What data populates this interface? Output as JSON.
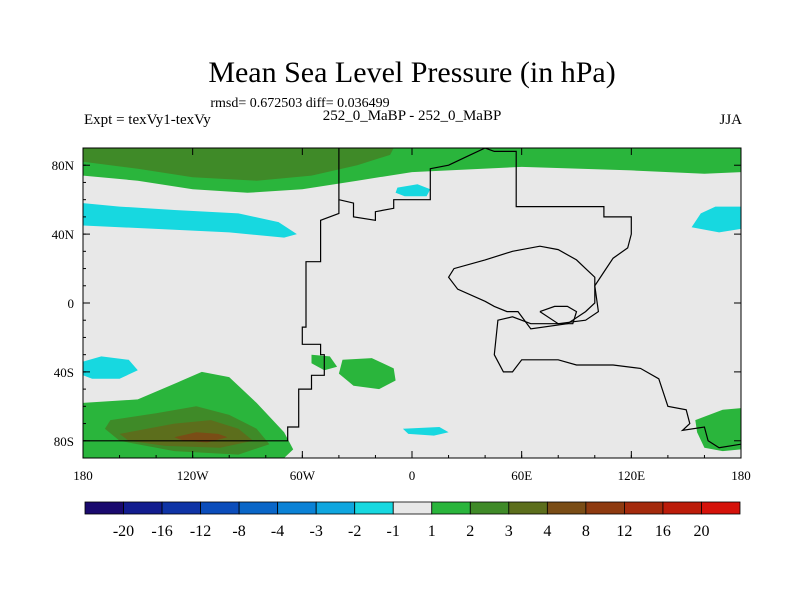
{
  "colors": {
    "background": "#e8e8e8",
    "green_light": "#2ab53c",
    "green_mid": "#3f8a28",
    "olive": "#5c6e1c",
    "brown": "#7a4d16",
    "brown_dark": "#8e3a10",
    "cyan": "#17d8e0",
    "coastline": "#000000"
  },
  "chart_data": {
    "type": "heatmap",
    "title": "Mean Sea Level Pressure (in hPa)",
    "stats": "rmsd= 0.672503 diff= 0.036499",
    "experiment": "Expt = texVy1-texVy",
    "subtitle": "252_0_MaBP - 252_0_MaBP",
    "season": "JJA",
    "x_ticks": [
      "180",
      "120W",
      "60W",
      "0",
      "60E",
      "120E",
      "180"
    ],
    "x_values": [
      -180,
      -120,
      -60,
      0,
      60,
      120,
      180
    ],
    "y_ticks": [
      "80N",
      "40N",
      "0",
      "40S",
      "80S"
    ],
    "y_values": [
      80,
      40,
      0,
      -40,
      -80
    ],
    "xlim": [
      -180,
      180
    ],
    "ylim": [
      -90,
      90
    ],
    "colorbar": {
      "labels": [
        "-20",
        "-16",
        "-12",
        "-8",
        "-4",
        "-3",
        "-2",
        "-1",
        "1",
        "2",
        "3",
        "4",
        "8",
        "12",
        "16",
        "20"
      ],
      "colors": [
        "#1a0a6e",
        "#131d8f",
        "#0f34a6",
        "#0b4dbb",
        "#0a66c8",
        "#0b82d6",
        "#0fa6df",
        "#17d8e0",
        "#e8e8e8",
        "#2ab53c",
        "#3f8a28",
        "#5c6e1c",
        "#7a4d16",
        "#8e3a10",
        "#a42a0c",
        "#bc1c0a",
        "#d5120a"
      ]
    },
    "anomaly_regions": [
      {
        "id": "arctic-band",
        "level": "1 to 2",
        "color": "#2ab53c",
        "points": [
          [
            -180,
            90
          ],
          [
            180,
            90
          ],
          [
            180,
            76
          ],
          [
            160,
            75
          ],
          [
            120,
            77
          ],
          [
            60,
            79
          ],
          [
            0,
            76
          ],
          [
            -30,
            71
          ],
          [
            -60,
            66
          ],
          [
            -90,
            64
          ],
          [
            -120,
            66
          ],
          [
            -150,
            71
          ],
          [
            -180,
            74
          ]
        ]
      },
      {
        "id": "arctic-core",
        "level": "2 to 3",
        "color": "#3f8a28",
        "points": [
          [
            -180,
            90
          ],
          [
            -10,
            90
          ],
          [
            -12,
            86
          ],
          [
            -30,
            80
          ],
          [
            -55,
            74
          ],
          [
            -85,
            71
          ],
          [
            -120,
            73
          ],
          [
            -150,
            78
          ],
          [
            -180,
            82
          ]
        ]
      },
      {
        "id": "pacific-north",
        "level": "-2 to -1",
        "color": "#17d8e0",
        "points": [
          [
            -180,
            58
          ],
          [
            -160,
            56
          ],
          [
            -130,
            54
          ],
          [
            -95,
            52
          ],
          [
            -73,
            47
          ],
          [
            -63,
            40
          ],
          [
            -70,
            38
          ],
          [
            -100,
            41
          ],
          [
            -140,
            43
          ],
          [
            -180,
            45
          ]
        ]
      },
      {
        "id": "pacific-north-east",
        "level": "-2 to -1",
        "color": "#17d8e0",
        "points": [
          [
            158,
            52
          ],
          [
            166,
            56
          ],
          [
            180,
            56
          ],
          [
            180,
            43
          ],
          [
            168,
            41
          ],
          [
            153,
            44
          ]
        ]
      },
      {
        "id": "central-north",
        "level": "-2 to -1",
        "color": "#17d8e0",
        "points": [
          [
            -8,
            67
          ],
          [
            3,
            69
          ],
          [
            10,
            66
          ],
          [
            8,
            62
          ],
          [
            -4,
            62
          ],
          [
            -9,
            64
          ]
        ]
      },
      {
        "id": "south-west-cyan",
        "level": "-2 to -1",
        "color": "#17d8e0",
        "points": [
          [
            -180,
            -34
          ],
          [
            -170,
            -31
          ],
          [
            -155,
            -33
          ],
          [
            -150,
            -39
          ],
          [
            -160,
            -44
          ],
          [
            -175,
            -44
          ],
          [
            -180,
            -42
          ]
        ]
      },
      {
        "id": "south-pacific-green",
        "level": "1 to 2",
        "color": "#2ab53c",
        "points": [
          [
            -180,
            -58
          ],
          [
            -150,
            -56
          ],
          [
            -128,
            -46
          ],
          [
            -115,
            -40
          ],
          [
            -100,
            -43
          ],
          [
            -85,
            -58
          ],
          [
            -70,
            -75
          ],
          [
            -65,
            -85
          ],
          [
            -70,
            -90
          ],
          [
            -180,
            -90
          ]
        ]
      },
      {
        "id": "south-pacific-mid",
        "level": "2 to 3",
        "color": "#3f8a28",
        "points": [
          [
            -165,
            -68
          ],
          [
            -140,
            -64
          ],
          [
            -118,
            -60
          ],
          [
            -100,
            -65
          ],
          [
            -85,
            -73
          ],
          [
            -78,
            -82
          ],
          [
            -95,
            -88
          ],
          [
            -130,
            -86
          ],
          [
            -160,
            -80
          ],
          [
            -168,
            -73
          ]
        ]
      },
      {
        "id": "south-pacific-olive",
        "level": "3 to 4",
        "color": "#5c6e1c",
        "points": [
          [
            -160,
            -76
          ],
          [
            -130,
            -70
          ],
          [
            -110,
            -68
          ],
          [
            -95,
            -73
          ],
          [
            -87,
            -80
          ],
          [
            -105,
            -84
          ],
          [
            -135,
            -83
          ],
          [
            -155,
            -80
          ]
        ]
      },
      {
        "id": "south-pacific-core",
        "level": "4 to 8",
        "color": "#7a4d16",
        "points": [
          [
            -130,
            -78
          ],
          [
            -118,
            -75
          ],
          [
            -106,
            -76
          ],
          [
            -101,
            -78
          ],
          [
            -112,
            -81
          ],
          [
            -125,
            -80
          ]
        ]
      },
      {
        "id": "south-atlantic-1",
        "level": "1 to 2",
        "color": "#2ab53c",
        "points": [
          [
            -55,
            -30
          ],
          [
            -45,
            -31
          ],
          [
            -41,
            -37
          ],
          [
            -48,
            -39
          ],
          [
            -55,
            -35
          ]
        ]
      },
      {
        "id": "south-atlantic-2",
        "level": "1 to 2",
        "color": "#2ab53c",
        "points": [
          [
            -38,
            -33
          ],
          [
            -22,
            -32
          ],
          [
            -10,
            -38
          ],
          [
            -9,
            -45
          ],
          [
            -18,
            -50
          ],
          [
            -32,
            -48
          ],
          [
            -40,
            -41
          ]
        ]
      },
      {
        "id": "south-central-cyan",
        "level": "-2 to -1",
        "color": "#17d8e0",
        "points": [
          [
            -5,
            -73
          ],
          [
            15,
            -72
          ],
          [
            20,
            -75
          ],
          [
            12,
            -77
          ],
          [
            -2,
            -76
          ]
        ]
      },
      {
        "id": "south-east-green",
        "level": "1 to 2",
        "color": "#2ab53c",
        "points": [
          [
            155,
            -68
          ],
          [
            170,
            -62
          ],
          [
            180,
            -61
          ],
          [
            180,
            -85
          ],
          [
            170,
            -86
          ],
          [
            160,
            -84
          ],
          [
            156,
            -75
          ]
        ]
      }
    ],
    "coastlines": [
      {
        "id": "supercontinent-west",
        "points": [
          [
            -40,
            90
          ],
          [
            -40,
            60
          ],
          [
            -32,
            58
          ],
          [
            -32,
            50
          ],
          [
            -20,
            48
          ],
          [
            -20,
            53
          ],
          [
            -10,
            55
          ],
          [
            -10,
            60
          ],
          [
            10,
            60
          ],
          [
            10,
            78
          ],
          [
            20,
            80
          ],
          [
            30,
            85
          ],
          [
            40,
            90
          ]
        ]
      },
      {
        "id": "supercontinent-body",
        "points": [
          [
            -40,
            60
          ],
          [
            -40,
            52
          ],
          [
            -50,
            48
          ],
          [
            -50,
            24
          ],
          [
            -58,
            24
          ],
          [
            -58,
            -14
          ],
          [
            -60,
            -14
          ],
          [
            -60,
            -24
          ],
          [
            -50,
            -24
          ],
          [
            -50,
            -30
          ],
          [
            -48,
            -30
          ],
          [
            -48,
            -42
          ],
          [
            -55,
            -42
          ],
          [
            -55,
            -50
          ],
          [
            -62,
            -50
          ],
          [
            -62,
            -72
          ],
          [
            -68,
            -72
          ],
          [
            -68,
            -80
          ],
          [
            -180,
            -80
          ]
        ]
      },
      {
        "id": "supercontinent-east",
        "points": [
          [
            40,
            90
          ],
          [
            45,
            88
          ],
          [
            57,
            88
          ],
          [
            57,
            56
          ],
          [
            105,
            56
          ],
          [
            105,
            50
          ],
          [
            120,
            50
          ],
          [
            120,
            40
          ],
          [
            118,
            32
          ],
          [
            110,
            26
          ],
          [
            105,
            18
          ],
          [
            100,
            10
          ],
          [
            102,
            -5
          ],
          [
            95,
            -10
          ],
          [
            80,
            -12
          ],
          [
            65,
            -12
          ],
          [
            55,
            -8
          ],
          [
            47,
            -10
          ],
          [
            45,
            -30
          ],
          [
            50,
            -40
          ],
          [
            55,
            -40
          ],
          [
            60,
            -33
          ],
          [
            80,
            -33
          ],
          [
            90,
            -36
          ],
          [
            110,
            -36
          ],
          [
            125,
            -38
          ],
          [
            135,
            -44
          ],
          [
            140,
            -60
          ],
          [
            150,
            -62
          ],
          [
            152,
            -70
          ],
          [
            148,
            -74
          ],
          [
            160,
            -72
          ],
          [
            162,
            -80
          ],
          [
            168,
            -84
          ],
          [
            180,
            -82
          ]
        ]
      },
      {
        "id": "tethys-loop",
        "points": [
          [
            40,
            1
          ],
          [
            25,
            8
          ],
          [
            20,
            15
          ],
          [
            23,
            20
          ],
          [
            40,
            25
          ],
          [
            55,
            30
          ],
          [
            70,
            33
          ],
          [
            80,
            31
          ],
          [
            90,
            25
          ],
          [
            95,
            20
          ],
          [
            100,
            15
          ],
          [
            100,
            0
          ],
          [
            95,
            -5
          ],
          [
            85,
            -12
          ],
          [
            65,
            -15
          ],
          [
            58,
            -5
          ],
          [
            52,
            -5
          ],
          [
            45,
            -2
          ],
          [
            40,
            1
          ]
        ]
      },
      {
        "id": "inner-loop",
        "points": [
          [
            70,
            -5
          ],
          [
            80,
            -12
          ],
          [
            88,
            -12
          ],
          [
            90,
            -5
          ],
          [
            85,
            -2
          ],
          [
            78,
            -2
          ],
          [
            70,
            -5
          ]
        ]
      }
    ]
  }
}
